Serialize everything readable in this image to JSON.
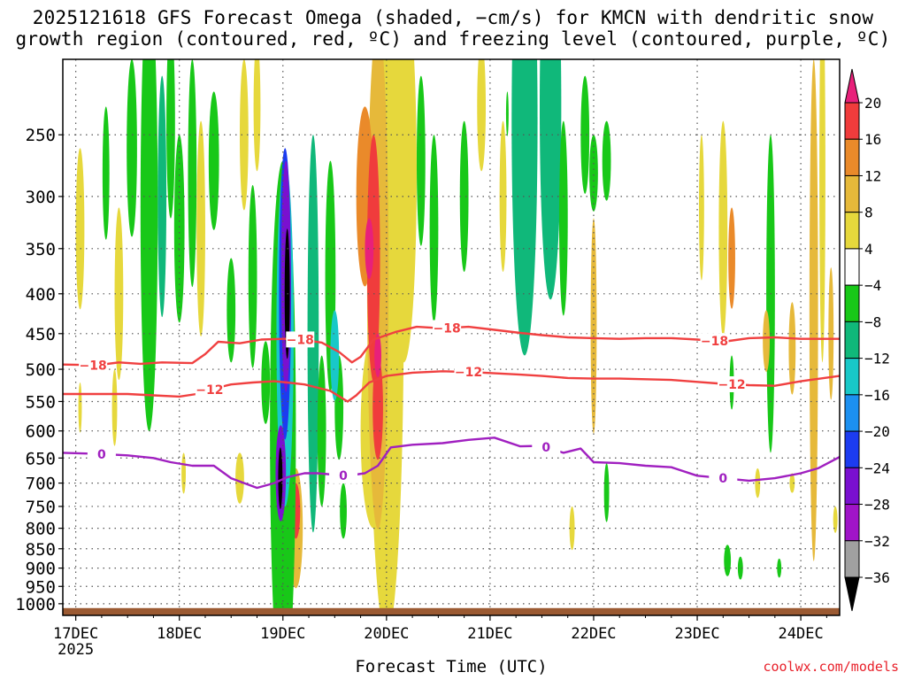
{
  "title_line1": "2025121618 GFS Forecast Omega (shaded, −cm/s) for KMCN with dendritic snow",
  "title_line2": "growth region (contoured, red, ºC) and freezing level (contoured, purple, ºC)",
  "credit": "coolwx.com/models",
  "chart_data": {
    "type": "heatmap",
    "title": "2025121618 GFS Forecast Omega (shaded, −cm/s) for KMCN with dendritic snow growth region (contoured, red, ºC) and freezing level (contoured, purple, ºC)",
    "xlabel": "Forecast Time (UTC)",
    "ylabel": "",
    "x_range_hours_from_17DEC00": [
      -3,
      177
    ],
    "y_range_hPa": [
      1035,
      200
    ],
    "y_ticks": [
      250,
      300,
      350,
      400,
      450,
      500,
      550,
      600,
      650,
      700,
      750,
      800,
      850,
      900,
      950,
      1000
    ],
    "x_ticks": [
      {
        "label": "17DEC",
        "hour": 0
      },
      {
        "label": "18DEC",
        "hour": 24
      },
      {
        "label": "19DEC",
        "hour": 48
      },
      {
        "label": "20DEC",
        "hour": 72
      },
      {
        "label": "21DEC",
        "hour": 96
      },
      {
        "label": "22DEC",
        "hour": 120
      },
      {
        "label": "23DEC",
        "hour": 144
      },
      {
        "label": "24DEC",
        "hour": 168
      }
    ],
    "x_sub_label": "2025",
    "colorbar": {
      "labels": [
        "20",
        "16",
        "12",
        "8",
        "4",
        "−4",
        "−8",
        "−12",
        "−16",
        "−20",
        "−24",
        "−28",
        "−32",
        "−36"
      ],
      "colors": [
        "#e8207a",
        "#f03c3c",
        "#ea8a2a",
        "#e6b93a",
        "#e6d83c",
        "#ffffff",
        "#18c818",
        "#10b87a",
        "#18c8c8",
        "#1c90f0",
        "#1c3cf0",
        "#7a10d0",
        "#a014c8",
        "#a0a0a0",
        "#000000"
      ]
    },
    "ground_pressure_hPa": 1013,
    "contours": [
      {
        "name": "dgz-minus18",
        "value": -18,
        "color": "#f04040",
        "label": "−18",
        "points": [
          [
            -3,
            493
          ],
          [
            5,
            494
          ],
          [
            10,
            490
          ],
          [
            15,
            492
          ],
          [
            20,
            490
          ],
          [
            27,
            491
          ],
          [
            30,
            478
          ],
          [
            33,
            461
          ],
          [
            38,
            463
          ],
          [
            43,
            458
          ],
          [
            48,
            457
          ],
          [
            51,
            457
          ],
          [
            57,
            462
          ],
          [
            61,
            475
          ],
          [
            64,
            490
          ],
          [
            66,
            482
          ],
          [
            69,
            458
          ],
          [
            74,
            448
          ],
          [
            79,
            441
          ],
          [
            85,
            443
          ],
          [
            91,
            441
          ],
          [
            97,
            445
          ],
          [
            103,
            449
          ],
          [
            108,
            452
          ],
          [
            114,
            455
          ],
          [
            120,
            456
          ],
          [
            126,
            457
          ],
          [
            132,
            456
          ],
          [
            138,
            456
          ],
          [
            144,
            458
          ],
          [
            150,
            461
          ],
          [
            156,
            456
          ],
          [
            162,
            455
          ],
          [
            168,
            457
          ],
          [
            177,
            457
          ]
        ],
        "label_hours": [
          4,
          52,
          86,
          148
        ]
      },
      {
        "name": "dgz-minus12",
        "value": -12,
        "color": "#f04040",
        "label": "−12",
        "points": [
          [
            -3,
            538
          ],
          [
            5,
            538
          ],
          [
            12,
            538
          ],
          [
            18,
            540
          ],
          [
            24,
            542
          ],
          [
            28,
            538
          ],
          [
            31,
            531
          ],
          [
            36,
            523
          ],
          [
            41,
            520
          ],
          [
            46,
            518
          ],
          [
            49,
            520
          ],
          [
            53,
            523
          ],
          [
            59,
            533
          ],
          [
            63,
            550
          ],
          [
            65,
            540
          ],
          [
            68,
            520
          ],
          [
            72,
            510
          ],
          [
            78,
            505
          ],
          [
            85,
            503
          ],
          [
            91,
            504
          ],
          [
            97,
            506
          ],
          [
            103,
            508
          ],
          [
            108,
            510
          ],
          [
            114,
            513
          ],
          [
            120,
            514
          ],
          [
            126,
            514
          ],
          [
            132,
            515
          ],
          [
            138,
            516
          ],
          [
            144,
            519
          ],
          [
            150,
            522
          ],
          [
            156,
            524
          ],
          [
            162,
            525
          ],
          [
            168,
            518
          ],
          [
            177,
            510
          ]
        ],
        "label_hours": [
          31,
          91,
          152
        ]
      },
      {
        "name": "freezing-level",
        "value": 0,
        "color": "#a020c0",
        "label": "0",
        "points": [
          [
            -3,
            640
          ],
          [
            5,
            642
          ],
          [
            12,
            645
          ],
          [
            18,
            650
          ],
          [
            22,
            658
          ],
          [
            27,
            665
          ],
          [
            32,
            665
          ],
          [
            36,
            690
          ],
          [
            39,
            700
          ],
          [
            42,
            710
          ],
          [
            46,
            700
          ],
          [
            49,
            688
          ],
          [
            53,
            680
          ],
          [
            56,
            680
          ],
          [
            60,
            683
          ],
          [
            63,
            685
          ],
          [
            67,
            680
          ],
          [
            70,
            665
          ],
          [
            73,
            630
          ],
          [
            78,
            625
          ],
          [
            85,
            622
          ],
          [
            91,
            616
          ],
          [
            97,
            612
          ],
          [
            103,
            628
          ],
          [
            108,
            627
          ],
          [
            113,
            640
          ],
          [
            117,
            632
          ],
          [
            120,
            658
          ],
          [
            126,
            660
          ],
          [
            132,
            665
          ],
          [
            138,
            668
          ],
          [
            144,
            685
          ],
          [
            150,
            690
          ],
          [
            156,
            695
          ],
          [
            162,
            690
          ],
          [
            168,
            680
          ],
          [
            172,
            670
          ],
          [
            177,
            648
          ]
        ],
        "label_hours": [
          6,
          62,
          109,
          150
        ]
      }
    ],
    "omega_regions": [
      {
        "desc": "descent yellow/orange band near 20DEC",
        "hours": [
          63,
          77
        ],
        "p": [
          200,
          700
        ],
        "value": 12
      },
      {
        "desc": "descent magenta core near 19.8DEC",
        "hours": [
          66,
          72
        ],
        "p": [
          280,
          650
        ],
        "value": 20
      },
      {
        "desc": "ascent purple/black core at 19DEC",
        "hours": [
          45,
          52
        ],
        "p": [
          270,
          800
        ],
        "value": -36
      },
      {
        "desc": "weak ascent green band near 21.5DEC",
        "hours": [
          103,
          117
        ],
        "p": [
          200,
          480
        ],
        "value": -8
      },
      {
        "desc": "weak descent yellow near 24DEC",
        "hours": [
          168,
          174
        ],
        "p": [
          210,
          590
        ],
        "value": 8
      }
    ]
  }
}
